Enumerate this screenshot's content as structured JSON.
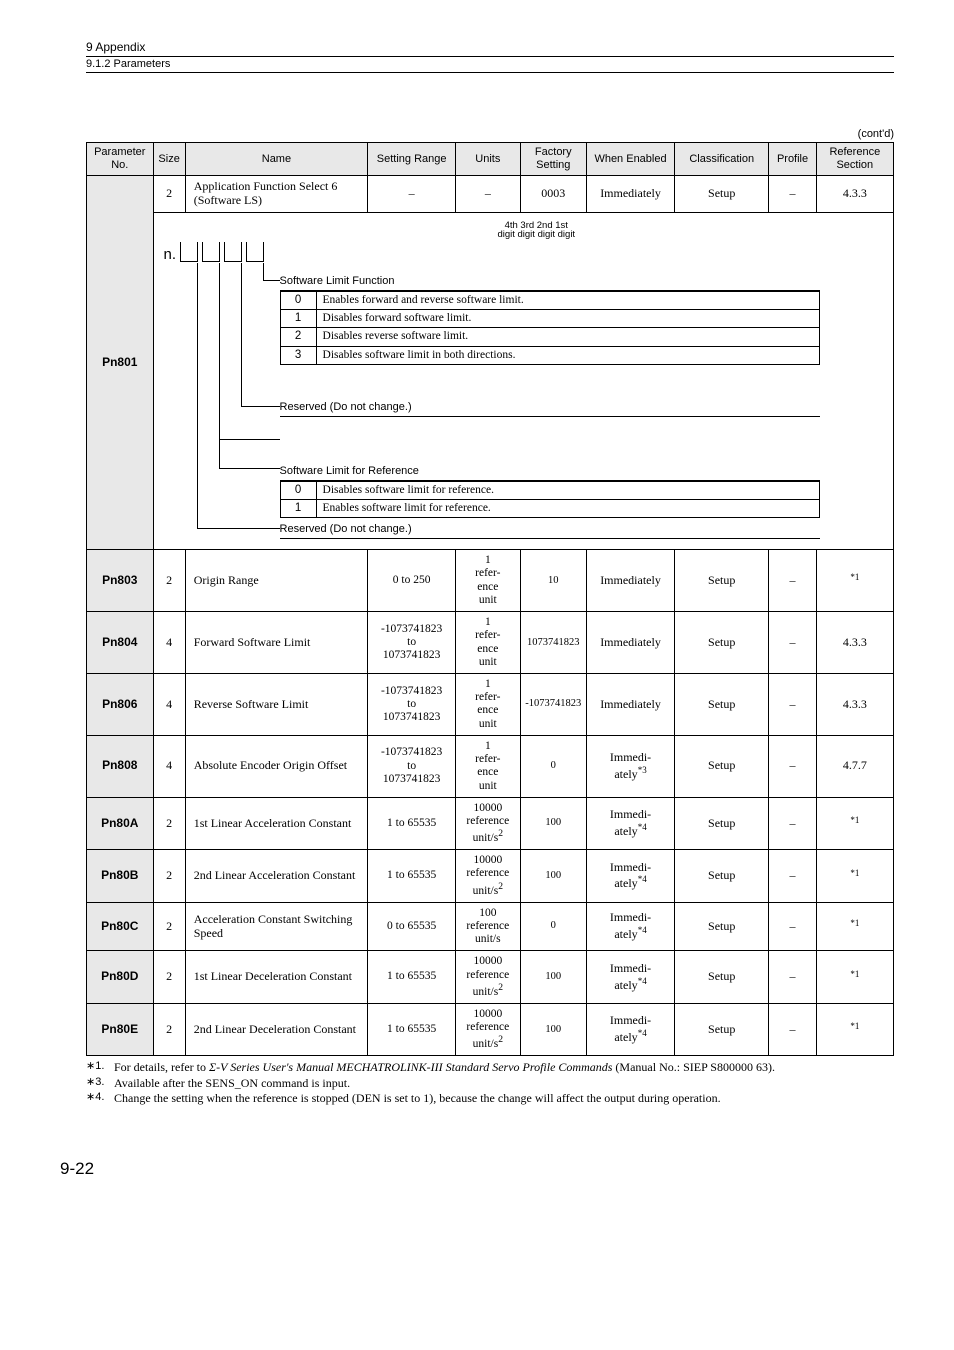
{
  "header": {
    "chapter": "9  Appendix",
    "section": "9.1.2  Parameters",
    "contd": "(cont'd)"
  },
  "columns": {
    "pn": "Parameter No.",
    "size": "Size",
    "name": "Name",
    "range": "Setting Range",
    "units": "Units",
    "factory": "Factory Setting",
    "when": "When Enabled",
    "class": "Classification",
    "profile": "Profile",
    "ref": "Reference Section"
  },
  "row801top": {
    "size": "2",
    "name": "Application Function Select 6\n(Software LS)",
    "range": "–",
    "units": "–",
    "factory": "0003",
    "when": "Immediately",
    "class": "Setup",
    "profile": "–",
    "ref": "4.3.3"
  },
  "pn801": {
    "label": "Pn801",
    "digit_labels_l1": "4th   3rd   2nd  1st",
    "digit_labels_l2": "digit digit digit digit",
    "n": "n.",
    "branch1": {
      "title": "Software Limit Function",
      "rows": [
        {
          "code": "0",
          "desc": "Enables forward and reverse software limit."
        },
        {
          "code": "1",
          "desc": "Disables forward software limit."
        },
        {
          "code": "2",
          "desc": "Disables reverse software limit."
        },
        {
          "code": "3",
          "desc": "Disables software limit in both directions."
        }
      ]
    },
    "branch2": {
      "title": "Reserved (Do not change.)"
    },
    "branch3": {
      "title": "Software Limit for Reference",
      "rows": [
        {
          "code": "0",
          "desc": "Disables software limit for reference."
        },
        {
          "code": "1",
          "desc": "Enables software limit for reference."
        }
      ]
    },
    "branch4": {
      "title": "Reserved (Do not change.)"
    }
  },
  "rows": [
    {
      "pn": "Pn803",
      "size": "2",
      "name": "Origin Range",
      "range": "0 to 250",
      "units": "1\nrefer-\nence\nunit",
      "factory": "10",
      "when": "Immediately",
      "class": "Setup",
      "profile": "–",
      "ref": "*1"
    },
    {
      "pn": "Pn804",
      "size": "4",
      "name": "Forward Software Limit",
      "range": "-1073741823\nto\n1073741823",
      "units": "1\nrefer-\nence\nunit",
      "factory": "1073741823",
      "when": "Immediately",
      "class": "Setup",
      "profile": "–",
      "ref": "4.3.3"
    },
    {
      "pn": "Pn806",
      "size": "4",
      "name": "Reverse Software Limit",
      "range": "-1073741823\nto\n1073741823",
      "units": "1\nrefer-\nence\nunit",
      "factory": "-1073741823",
      "when": "Immediately",
      "class": "Setup",
      "profile": "–",
      "ref": "4.3.3"
    },
    {
      "pn": "Pn808",
      "size": "4",
      "name": "Absolute Encoder Origin Offset",
      "range": "-1073741823\nto\n1073741823",
      "units": "1\nrefer-\nence\nunit",
      "factory": "0",
      "when": "Immedi-\nately*3",
      "class": "Setup",
      "profile": "–",
      "ref": "4.7.7"
    },
    {
      "pn": "Pn80A",
      "size": "2",
      "name": "1st Linear Acceleration Constant",
      "range": "1 to 65535",
      "units": "10000\nreference\nunit/s²",
      "factory": "100",
      "when": "Immedi-\nately*4",
      "class": "Setup",
      "profile": "–",
      "ref": "*1"
    },
    {
      "pn": "Pn80B",
      "size": "2",
      "name": "2nd Linear Acceleration Constant",
      "range": "1 to 65535",
      "units": "10000\nreference\nunit/s²",
      "factory": "100",
      "when": "Immedi-\nately*4",
      "class": "Setup",
      "profile": "–",
      "ref": "*1"
    },
    {
      "pn": "Pn80C",
      "size": "2",
      "name": "Acceleration Constant Switching Speed",
      "range": "0 to 65535",
      "units": "100\nreference\nunit/s",
      "factory": "0",
      "when": "Immedi-\nately*4",
      "class": "Setup",
      "profile": "–",
      "ref": "*1"
    },
    {
      "pn": "Pn80D",
      "size": "2",
      "name": "1st Linear Deceleration Constant",
      "range": "1 to 65535",
      "units": "10000\nreference\nunit/s²",
      "factory": "100",
      "when": "Immedi-\nately*4",
      "class": "Setup",
      "profile": "–",
      "ref": "*1"
    },
    {
      "pn": "Pn80E",
      "size": "2",
      "name": "2nd Linear Deceleration Constant",
      "range": "1 to 65535",
      "units": "10000\nreference\nunit/s²",
      "factory": "100",
      "when": "Immedi-\nately*4",
      "class": "Setup",
      "profile": "–",
      "ref": "*1"
    }
  ],
  "footnotes": {
    "f1a": "For details, refer to ",
    "f1b": "Σ-V Series User's Manual MECHATROLINK-III Standard Servo Profile Commands",
    "f1c": " (Manual No.: SIEP S800000 63).",
    "f3": "Available after the SENS_ON command is input.",
    "f4": "Change the setting when the reference is stopped (DEN is set to 1), because the change will affect the output during operation.",
    "m1": "∗1.",
    "m3": "∗3.",
    "m4": "∗4."
  },
  "pagenum": "9-22"
}
